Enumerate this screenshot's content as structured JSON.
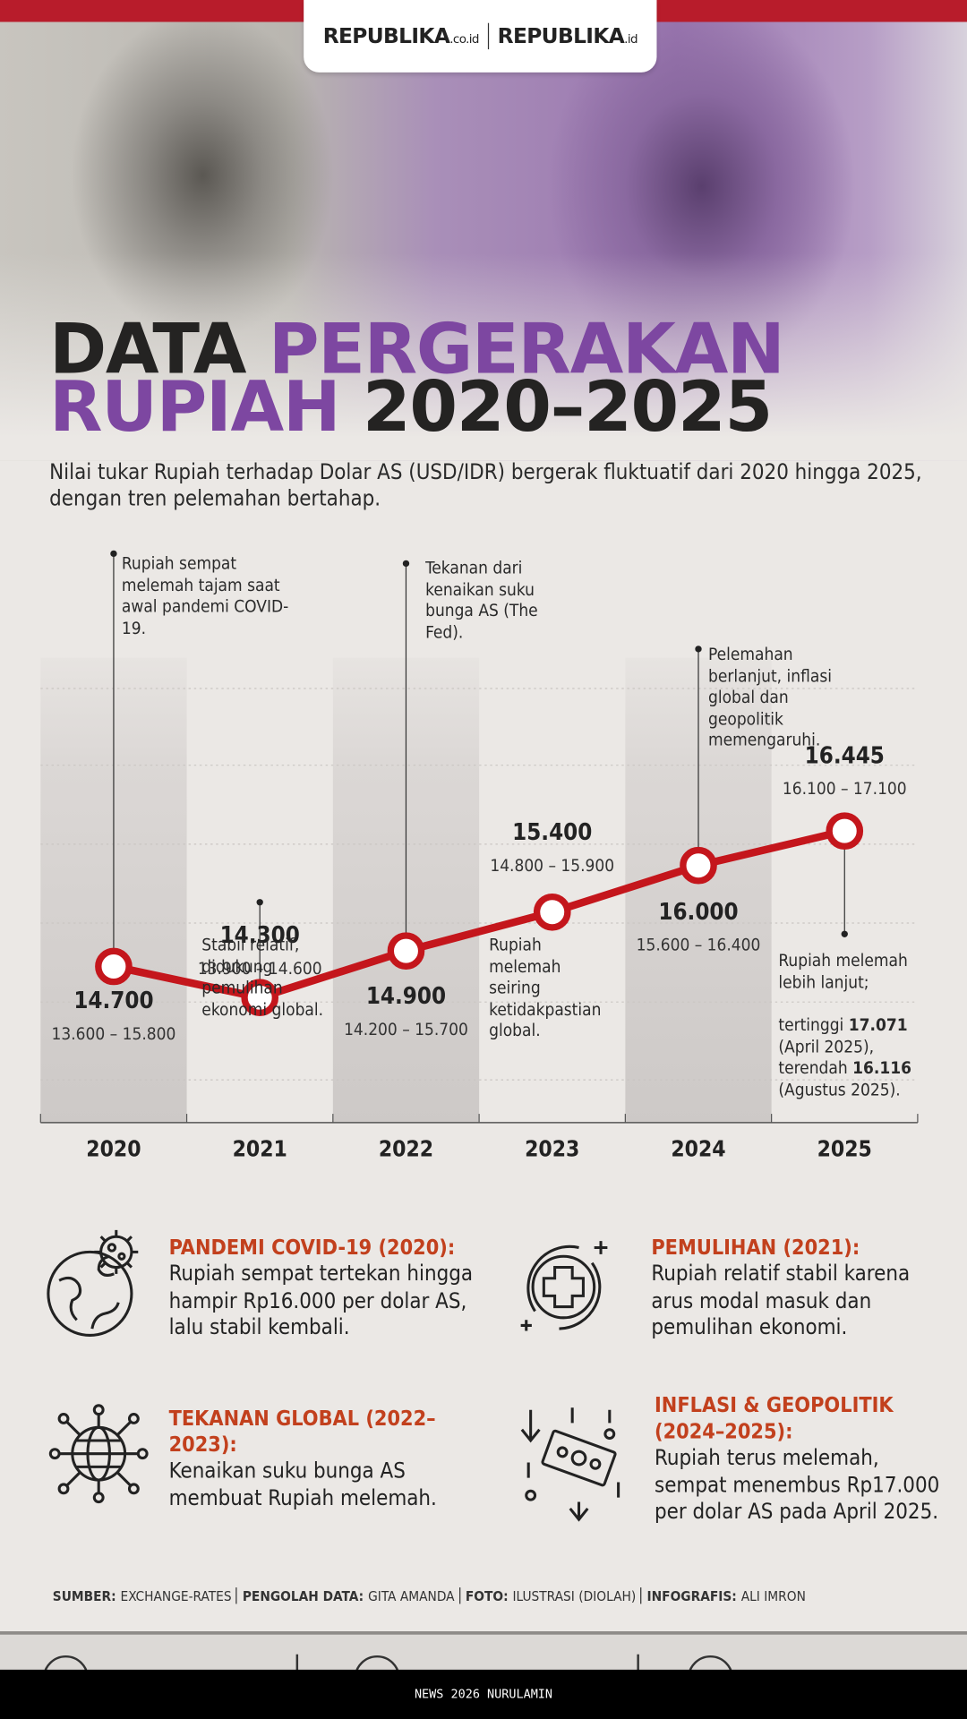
{
  "header": {
    "brand_left": "REPUBLIKA",
    "brand_left_suffix": ".co.id",
    "brand_right": "REPUBLIKA",
    "brand_right_suffix": ".id"
  },
  "title": {
    "line1_dark": "DATA",
    "line1_accent": "PERGERAKAN",
    "line2_accent": "RUPIAH",
    "line2_dark": "2020–2025"
  },
  "intro": "Nilai tukar Rupiah terhadap Dolar AS (USD/IDR) bergerak fluktuatif dari 2020 hingga 2025, dengan tren pelemahan bertahap.",
  "chart_data": {
    "type": "line",
    "categories": [
      "2020",
      "2021",
      "2022",
      "2023",
      "2024",
      "2025"
    ],
    "values": [
      14700,
      14300,
      14900,
      15400,
      16000,
      16445
    ],
    "value_labels": [
      "14.700",
      "14.300",
      "14.900",
      "15.400",
      "16.000",
      "16.445"
    ],
    "range_labels": [
      "13.600 – 15.800",
      "13.900 – 14.600",
      "14.200 – 15.700",
      "14.800 – 15.900",
      "15.600 – 16.400",
      "16.100 – 17.100"
    ],
    "color": "#c4161c",
    "ylim": [
      13000,
      19000
    ],
    "annotations": [
      "Rupiah sempat melemah tajam saat awal pandemi COVID-19.",
      "Stabil relatif, didukung pemulihan ekonomi global.",
      "Tekanan dari kenaikan suku bunga AS (The Fed).",
      "Rupiah melemah seiring ketidakpastian global.",
      "Pelemahan berlanjut, inflasi global dan geopolitik memengaruhi.",
      {
        "text": "Rupiah melemah lebih lanjut;",
        "high_label": "tertinggi",
        "high": "17.071",
        "high_date": "(April 2025),",
        "low_label": "terendah",
        "low": "16.116",
        "low_date": "(Agustus 2025)."
      }
    ]
  },
  "highlights": [
    {
      "title": "PANDEMI COVID-19 (2020):",
      "text": "Rupiah sempat tertekan hingga hampir Rp16.000 per dolar AS, lalu stabil kembali."
    },
    {
      "title": "PEMULIHAN (2021):",
      "text": "Rupiah relatif stabil karena arus modal masuk dan pemulihan ekonomi."
    },
    {
      "title": "TEKANAN GLOBAL (2022–2023):",
      "text": "Kenaikan suku bunga AS membuat Rupiah melemah."
    },
    {
      "title": "INFLASI & GEOPOLITIK (2024–2025):",
      "text": "Rupiah terus melemah, sempat menembus Rp17.000 per dolar AS pada April 2025."
    }
  ],
  "credits": [
    {
      "label": "SUMBER:",
      "value": "EXCHANGE-RATES"
    },
    {
      "label": "PENGOLAH DATA:",
      "value": "GITA AMANDA"
    },
    {
      "label": "FOTO:",
      "value": "ILUSTRASI (DIOLAH)"
    },
    {
      "label": "INFOGRAFIS:",
      "value": "ALI IMRON"
    }
  ],
  "footer": "NEWS 2026 NURULAMIN"
}
